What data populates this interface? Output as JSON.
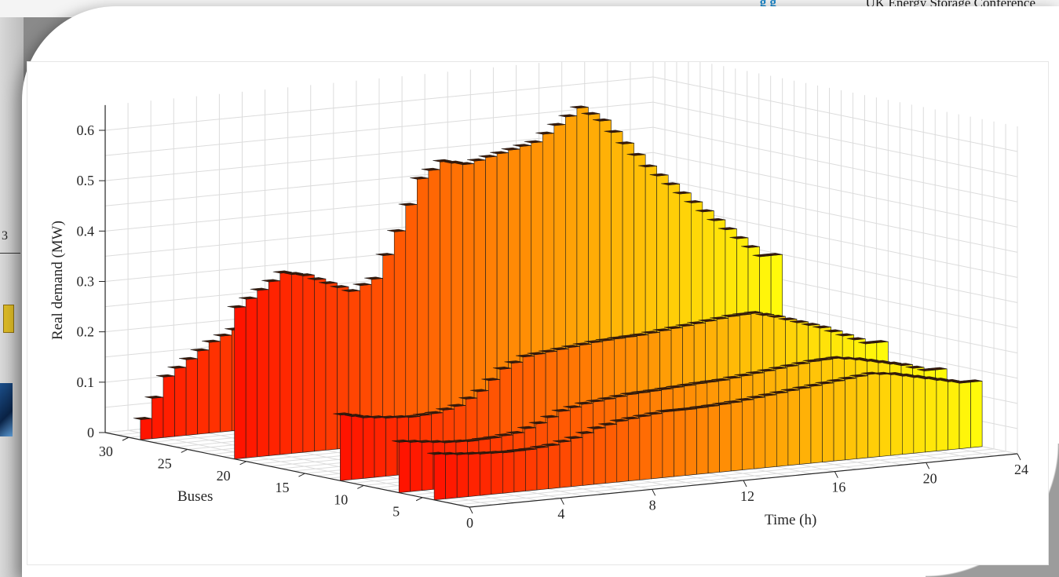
{
  "header": {
    "brand": "g  g",
    "conference": "UK Energy Storage Conference"
  },
  "side": {
    "number_fragment": "3"
  },
  "chart_data": {
    "type": "3d-waterfall",
    "title": "",
    "xlabel": "Time (h)",
    "ylabel": "Buses",
    "zlabel": "Real demand (MW)",
    "xlim": [
      0,
      24
    ],
    "ylim": [
      1,
      32
    ],
    "zlim": [
      0,
      0.65
    ],
    "x_ticks": [
      "0",
      "4",
      "8",
      "12",
      "16",
      "20",
      "24"
    ],
    "y_ticks": [
      "5",
      "10",
      "15",
      "20",
      "25",
      "30"
    ],
    "z_ticks": [
      "0",
      "0.1",
      "0.2",
      "0.3",
      "0.4",
      "0.5",
      "0.6"
    ],
    "grid": true,
    "colormap": "autumn (red to yellow over time)",
    "time_points": [
      0,
      1,
      2,
      3,
      4,
      5,
      6,
      7,
      8,
      9,
      10,
      11,
      12,
      13,
      14,
      15,
      16,
      17,
      18,
      19,
      20,
      21,
      22,
      23
    ],
    "series": [
      {
        "bus": 4,
        "values": [
          0.09,
          0.085,
          0.082,
          0.08,
          0.081,
          0.085,
          0.095,
          0.11,
          0.12,
          0.125,
          0.13,
          0.13,
          0.132,
          0.135,
          0.14,
          0.145,
          0.15,
          0.155,
          0.16,
          0.165,
          0.16,
          0.15,
          0.14,
          0.13
        ]
      },
      {
        "bus": 7,
        "values": [
          0.1,
          0.095,
          0.09,
          0.088,
          0.09,
          0.095,
          0.11,
          0.13,
          0.14,
          0.145,
          0.15,
          0.152,
          0.155,
          0.158,
          0.16,
          0.165,
          0.17,
          0.175,
          0.18,
          0.182,
          0.175,
          0.165,
          0.155,
          0.14
        ]
      },
      {
        "bus": 12,
        "values": [
          0.13,
          0.12,
          0.115,
          0.112,
          0.115,
          0.125,
          0.15,
          0.19,
          0.21,
          0.215,
          0.22,
          0.225,
          0.228,
          0.23,
          0.235,
          0.24,
          0.245,
          0.25,
          0.252,
          0.24,
          0.225,
          0.21,
          0.19,
          0.17
        ]
      },
      {
        "bus": 21,
        "values": [
          0.3,
          0.33,
          0.36,
          0.35,
          0.33,
          0.31,
          0.33,
          0.42,
          0.52,
          0.55,
          0.54,
          0.55,
          0.56,
          0.57,
          0.6,
          0.63,
          0.6,
          0.55,
          0.5,
          0.46,
          0.42,
          0.38,
          0.34,
          0.3
        ]
      },
      {
        "bus": 29,
        "values": [
          0.04,
          0.12,
          0.15,
          0.18,
          0.2,
          0.19,
          0.17,
          0.15,
          0.14,
          0.135,
          0.13,
          0.128,
          0.125,
          0.12,
          0.118,
          0.115,
          0.112,
          0.11,
          0.108,
          0.105,
          0.1,
          0.095,
          0.09,
          0.085
        ]
      }
    ]
  }
}
